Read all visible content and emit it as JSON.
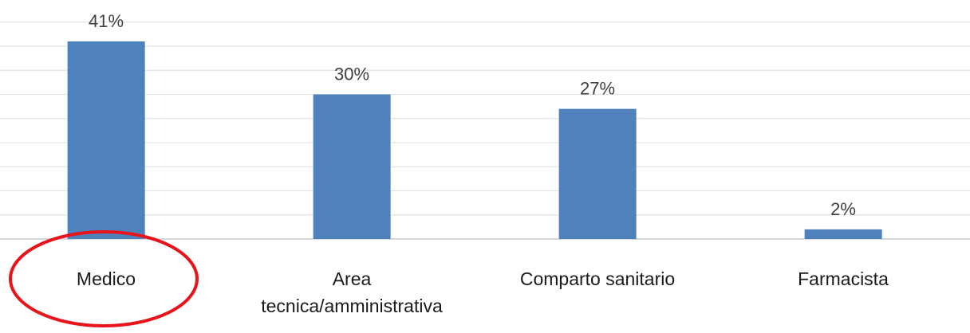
{
  "chart_data": {
    "type": "bar",
    "categories": [
      "Medico",
      "Area\ntecnica/amministrativa",
      "Comparto sanitario",
      "Farmacista"
    ],
    "values": [
      41,
      30,
      27,
      2
    ],
    "value_labels": [
      "41%",
      "30%",
      "27%",
      "2%"
    ],
    "color": "#4f81bd",
    "ylim": [
      0,
      50
    ],
    "yticks": [
      0,
      5,
      10,
      15,
      20,
      25,
      30,
      35,
      40,
      45
    ],
    "grid": true
  }
}
